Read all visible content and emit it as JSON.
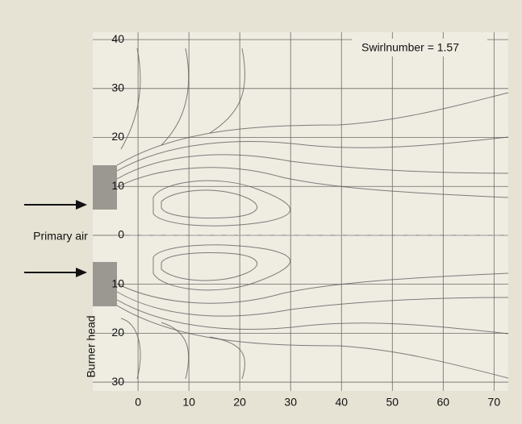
{
  "chart_data": {
    "type": "streamline",
    "annotations": {
      "swirl": "Swirlnumber = 1.57",
      "inlet": "Primary air",
      "burner": "Burner head"
    },
    "xlim": [
      -8.9,
      72.8
    ],
    "xticks": [
      0,
      10,
      20,
      30,
      40,
      50,
      60,
      70
    ],
    "ylim": [
      -31.8,
      41.5
    ],
    "yticks": [
      40,
      30,
      20,
      10,
      0,
      {
        "value": -10,
        "label": "10"
      },
      {
        "value": -20,
        "label": "20"
      },
      {
        "value": -30,
        "label": "30"
      }
    ],
    "grid": true
  }
}
